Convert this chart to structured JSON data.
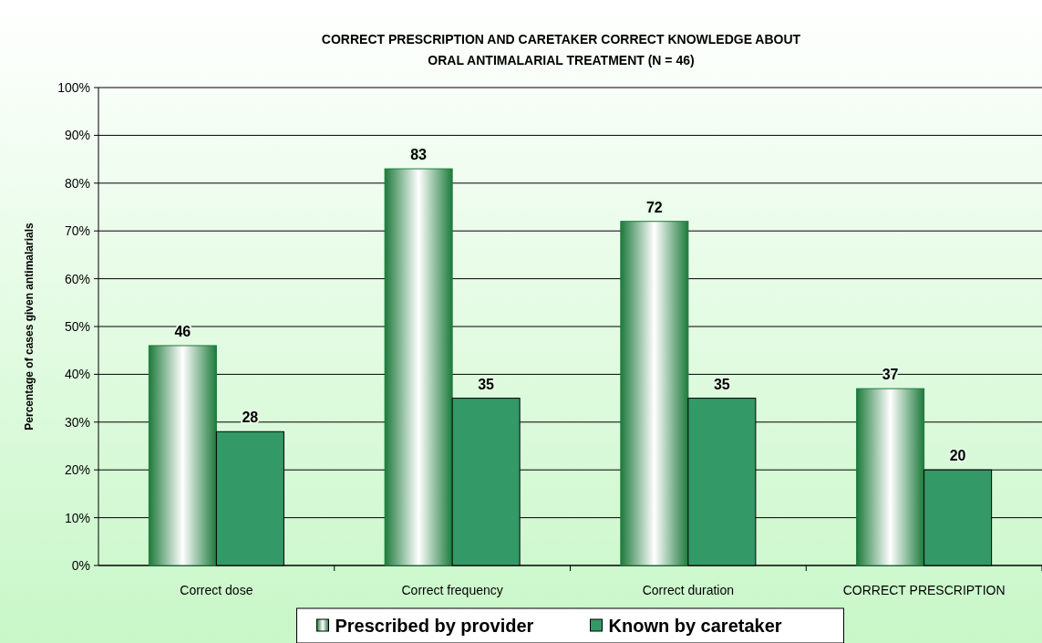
{
  "chart_data": {
    "type": "bar",
    "title": "CORRECT PRESCRIPTION AND CARETAKER CORRECT KNOWLEDGE ABOUT\nORAL ANTIMALARIAL TREATMENT (N = 46)",
    "ylabel": "Percentage of cases given antimalarials",
    "categories": [
      "Correct dose",
      "Correct frequency",
      "Correct duration",
      "CORRECT PRESCRIPTION"
    ],
    "series": [
      {
        "name": "Prescribed by provider",
        "color": "#1e7a3c",
        "values": [
          46,
          83,
          72,
          37
        ]
      },
      {
        "name": "Known by caretaker",
        "color": "#339966",
        "values": [
          28,
          35,
          35,
          20
        ]
      }
    ],
    "ylim": [
      0,
      100
    ],
    "yticks": [
      {
        "value": 0,
        "label": "0%"
      },
      {
        "value": 10,
        "label": "10%"
      },
      {
        "value": 20,
        "label": "20%"
      },
      {
        "value": 30,
        "label": "30%"
      },
      {
        "value": 40,
        "label": "40%"
      },
      {
        "value": 50,
        "label": "50%"
      },
      {
        "value": 60,
        "label": "60%"
      },
      {
        "value": 70,
        "label": "70%"
      },
      {
        "value": 80,
        "label": "80%"
      },
      {
        "value": 90,
        "label": "90%"
      },
      {
        "value": 100,
        "label": "100%"
      }
    ],
    "grid": "y",
    "legend": "bottom",
    "data_labels": true
  }
}
